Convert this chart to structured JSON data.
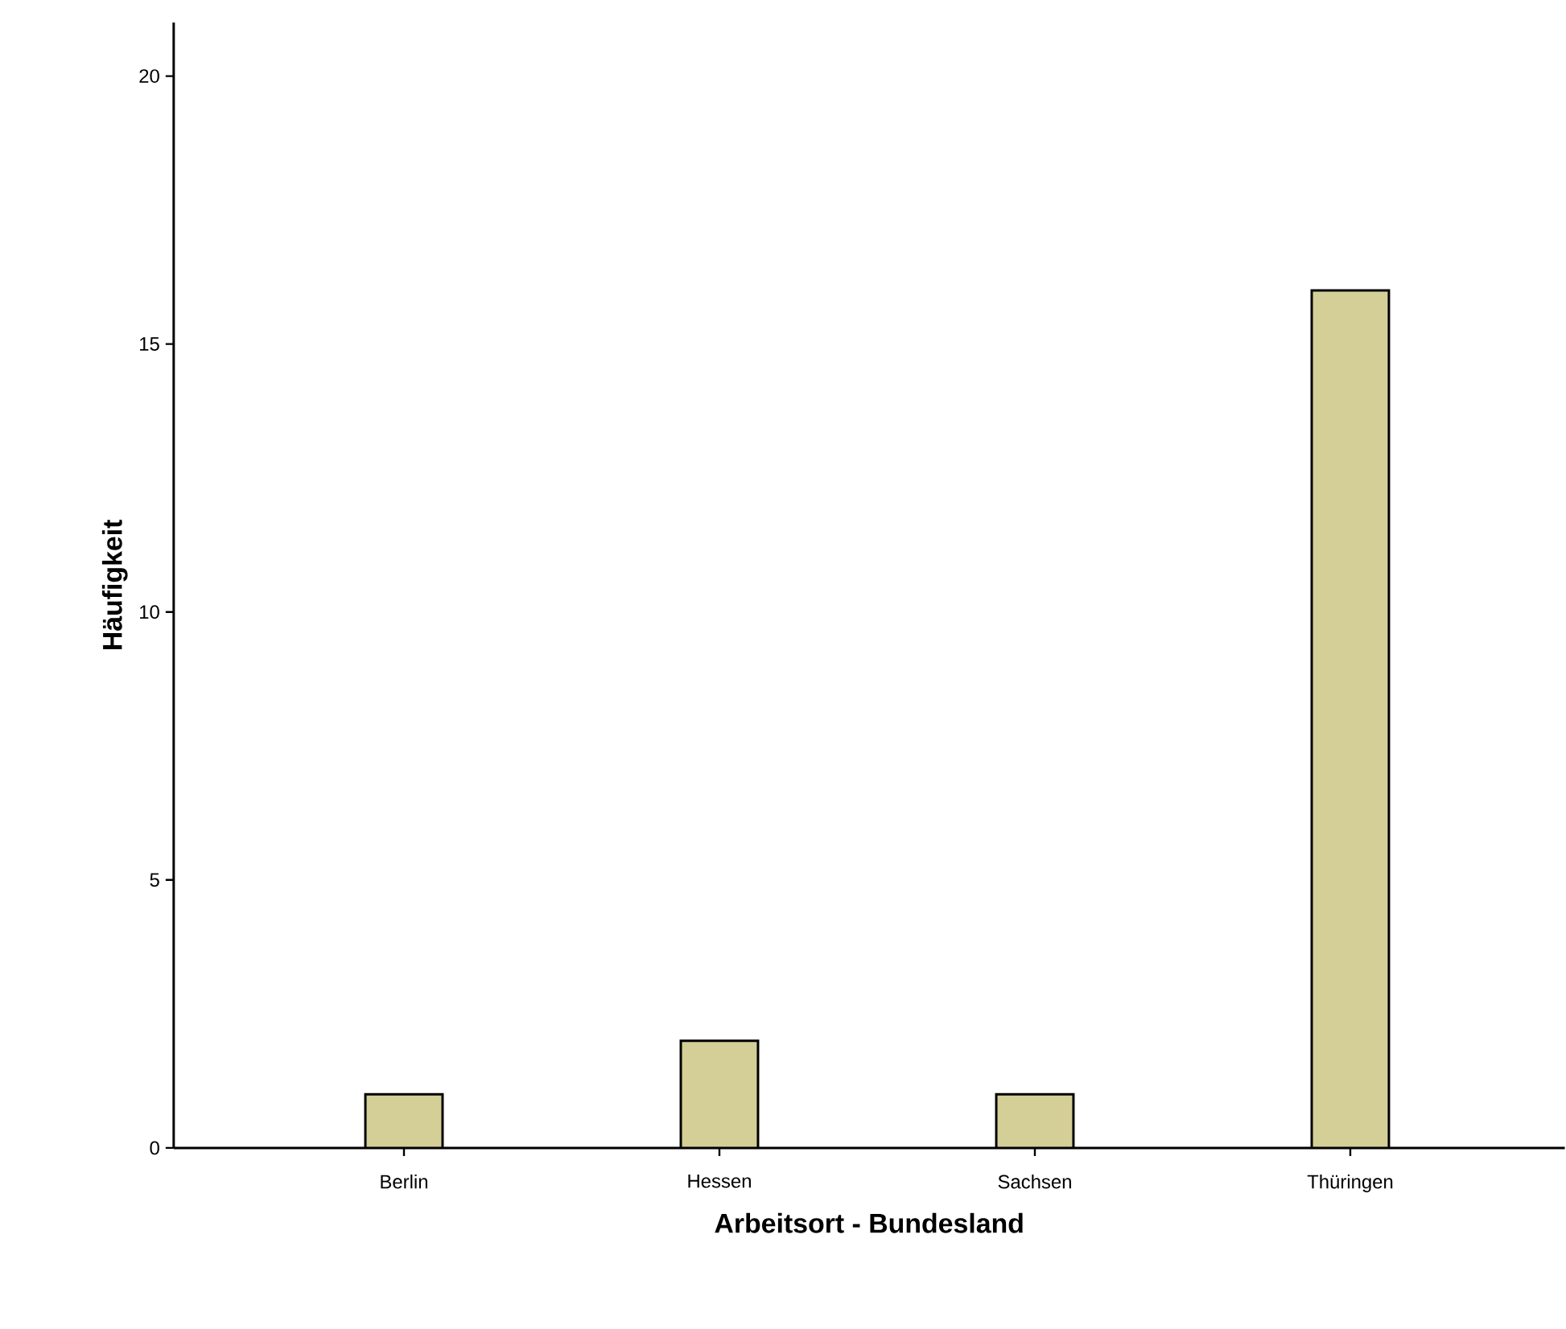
{
  "chart_data": {
    "type": "bar",
    "xlabel": "Arbeitsort - Bundesland",
    "ylabel": "Häufigkeit",
    "categories": [
      "Berlin",
      "Hessen",
      "Sachsen",
      "Thüringen"
    ],
    "values": [
      1,
      2,
      1,
      16
    ],
    "color": "#d4cf96",
    "ylim": [
      0,
      21
    ],
    "yticks": [
      0,
      5,
      10,
      15,
      20
    ],
    "grid": false
  }
}
